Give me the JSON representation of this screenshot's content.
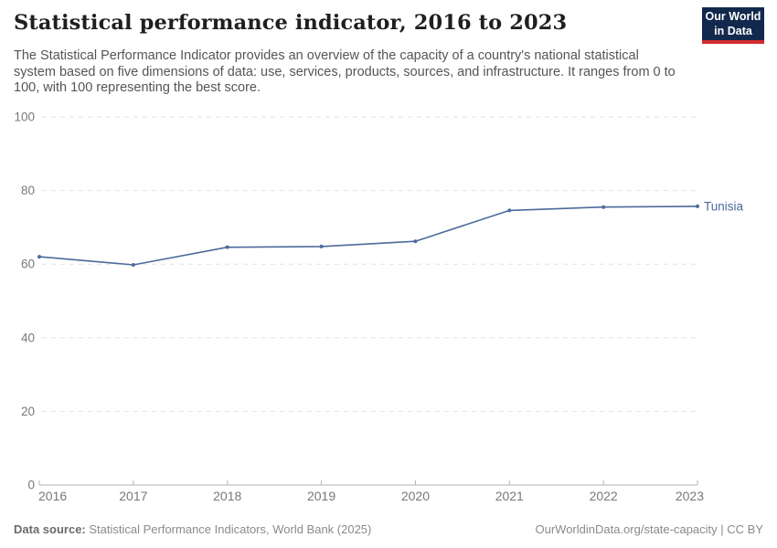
{
  "header": {
    "title": "Statistical performance indicator, 2016 to 2023",
    "subtitle": "The Statistical Performance Indicator provides an overview of the capacity of a country's national statistical system based on five dimensions of data: use, services, products, sources, and infrastructure. It ranges from 0 to 100, with 100 representing the best score.",
    "logo": {
      "line1": "Our World",
      "line2": "in Data"
    }
  },
  "chart_data": {
    "type": "line",
    "title": "Statistical performance indicator, 2016 to 2023",
    "x": [
      2016,
      2017,
      2018,
      2019,
      2020,
      2021,
      2022,
      2023
    ],
    "series": [
      {
        "name": "Tunisia",
        "color": "#4c6a9c",
        "values": [
          62.0,
          59.8,
          64.6,
          64.8,
          66.2,
          74.6,
          75.5,
          75.7
        ]
      }
    ],
    "xlabel": "",
    "ylabel": "",
    "ylim": [
      0,
      100
    ],
    "yticks": [
      0,
      20,
      40,
      60,
      80,
      100
    ],
    "grid": "horizontal-dashed",
    "legend": "end-of-line-label"
  },
  "colors": {
    "line": "#4c6a9c",
    "grid": "#e2e2e2",
    "axis": "#b3b3b3",
    "tick_label": "#787878",
    "logo_bg": "#12294d",
    "logo_accent": "#d42b2f"
  },
  "footer": {
    "source_label": "Data source:",
    "source_text": " Statistical Performance Indicators, World Bank (2025)",
    "link_text": "OurWorldinData.org/state-capacity | CC BY"
  }
}
